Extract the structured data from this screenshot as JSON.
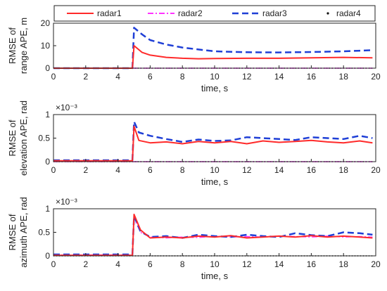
{
  "colors": {
    "radar1": "#ff2a2a",
    "radar2": "#ff33ff",
    "radar3": "#1f3fd6",
    "radar4": "#111111",
    "axis": "#222222"
  },
  "legend": {
    "placement": "top",
    "items": [
      {
        "series": "radar1",
        "label": "radar1",
        "style": "solid"
      },
      {
        "series": "radar2",
        "label": "radar2",
        "style": "dash-dot"
      },
      {
        "series": "radar3",
        "label": "radar3",
        "style": "dashed"
      },
      {
        "series": "radar4",
        "label": "radar4",
        "style": "dotted"
      }
    ]
  },
  "chart_data": [
    {
      "type": "line",
      "ylabel_lines": [
        "RMSE of",
        "range APE,  m"
      ],
      "xlabel": "time, s",
      "xlim": [
        0,
        20
      ],
      "ylim": [
        0,
        20
      ],
      "xticks": [
        0,
        2,
        4,
        6,
        8,
        10,
        12,
        14,
        16,
        18,
        20
      ],
      "yticks": [
        0,
        10,
        20
      ],
      "exponent": "",
      "grid": false,
      "x": [
        0,
        4.9,
        5.0,
        5.5,
        6,
        7,
        8,
        9,
        10,
        12,
        14,
        16,
        18,
        19.8
      ],
      "series": [
        {
          "name": "radar1",
          "values": [
            0,
            0,
            10,
            7,
            5.8,
            4.8,
            4.4,
            4.2,
            4.3,
            4.4,
            4.4,
            4.6,
            4.8,
            4.6
          ]
        },
        {
          "name": "radar2",
          "values": [
            0,
            0,
            0,
            0,
            0,
            0,
            0,
            0,
            0,
            0,
            0,
            0,
            0,
            0
          ]
        },
        {
          "name": "radar3",
          "values": [
            0,
            0,
            18,
            15,
            12.5,
            10.5,
            9.2,
            8.3,
            7.5,
            7.1,
            7.0,
            7.2,
            7.5,
            8.0
          ]
        },
        {
          "name": "radar4",
          "values": [
            0,
            0,
            0,
            0,
            0,
            0,
            0,
            0,
            0,
            0,
            0,
            0,
            0,
            0
          ]
        }
      ]
    },
    {
      "type": "line",
      "ylabel_lines": [
        "RMSE of",
        "elevation APE,  rad"
      ],
      "xlabel": "time, s",
      "xlim": [
        0,
        20
      ],
      "ylim": [
        0,
        1
      ],
      "xticks": [
        0,
        2,
        4,
        6,
        8,
        10,
        12,
        14,
        16,
        18,
        20
      ],
      "yticks": [
        0,
        0.5,
        1
      ],
      "exponent": "×10⁻³",
      "grid": false,
      "x": [
        0,
        4.9,
        5.0,
        5.3,
        6,
        7,
        8,
        9,
        10,
        11,
        12,
        13,
        14,
        15,
        16,
        17,
        18,
        19,
        19.8
      ],
      "series": [
        {
          "name": "radar1",
          "values": [
            0.02,
            0.02,
            0.75,
            0.45,
            0.4,
            0.42,
            0.38,
            0.43,
            0.4,
            0.43,
            0.38,
            0.44,
            0.41,
            0.43,
            0.45,
            0.42,
            0.4,
            0.44,
            0.4
          ]
        },
        {
          "name": "radar2",
          "values": [
            0,
            0,
            0,
            0,
            0,
            0,
            0,
            0,
            0,
            0,
            0,
            0,
            0,
            0,
            0,
            0,
            0,
            0,
            0
          ]
        },
        {
          "name": "radar3",
          "values": [
            0.03,
            0.03,
            0.85,
            0.62,
            0.55,
            0.48,
            0.42,
            0.47,
            0.44,
            0.45,
            0.52,
            0.5,
            0.48,
            0.46,
            0.52,
            0.5,
            0.48,
            0.55,
            0.5
          ]
        },
        {
          "name": "radar4",
          "values": [
            0,
            0,
            0,
            0,
            0,
            0,
            0,
            0,
            0,
            0,
            0,
            0,
            0,
            0,
            0,
            0,
            0,
            0,
            0
          ]
        }
      ]
    },
    {
      "type": "line",
      "ylabel_lines": [
        "RMSE of",
        "azimuth APE,  rad"
      ],
      "xlabel": "time, s",
      "xlim": [
        0,
        20
      ],
      "ylim": [
        0,
        1
      ],
      "xticks": [
        0,
        2,
        4,
        6,
        8,
        10,
        12,
        14,
        16,
        18,
        20
      ],
      "yticks": [
        0,
        0.5,
        1
      ],
      "exponent": "×10⁻³",
      "grid": false,
      "x": [
        0,
        4.9,
        5.0,
        5.4,
        6,
        7,
        8,
        9,
        10,
        11,
        12,
        13,
        14,
        15,
        16,
        17,
        18,
        19,
        19.8
      ],
      "series": [
        {
          "name": "radar1",
          "values": [
            0.01,
            0.01,
            0.88,
            0.55,
            0.38,
            0.4,
            0.38,
            0.42,
            0.4,
            0.43,
            0.38,
            0.4,
            0.42,
            0.4,
            0.43,
            0.4,
            0.42,
            0.4,
            0.38
          ]
        },
        {
          "name": "radar2",
          "values": [
            0.02,
            0.02,
            0.8,
            0.5,
            0.4,
            0.38,
            0.4,
            0.39,
            0.42,
            0.4,
            0.41,
            0.4,
            0.42,
            0.41,
            0.4,
            0.42,
            0.4,
            0.41,
            0.4
          ]
        },
        {
          "name": "radar3",
          "values": [
            0.03,
            0.03,
            0.85,
            0.52,
            0.4,
            0.42,
            0.38,
            0.45,
            0.42,
            0.4,
            0.45,
            0.42,
            0.4,
            0.48,
            0.44,
            0.42,
            0.5,
            0.48,
            0.45
          ]
        },
        {
          "name": "radar4",
          "values": [
            0,
            0,
            0,
            0,
            0,
            0,
            0,
            0,
            0,
            0,
            0,
            0,
            0,
            0,
            0,
            0,
            0,
            0,
            0
          ]
        }
      ]
    }
  ]
}
